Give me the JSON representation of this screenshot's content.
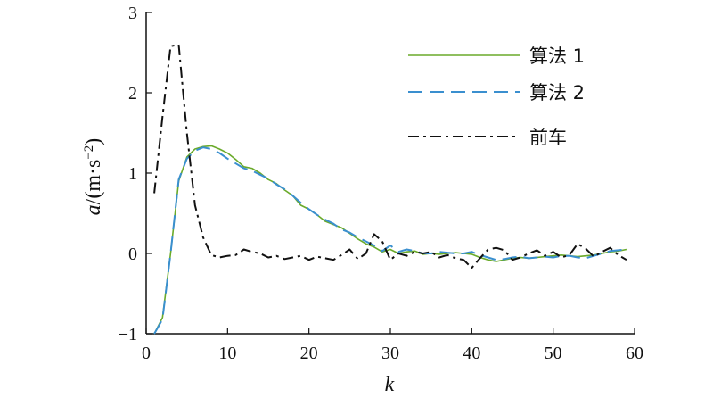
{
  "chart_data": {
    "type": "line",
    "xlabel": "k",
    "ylabel": "a/(m·s⁻²)",
    "xlim": [
      0,
      60
    ],
    "ylim": [
      -1,
      3
    ],
    "xticks": [
      0,
      10,
      20,
      30,
      40,
      50,
      60
    ],
    "yticks": [
      -1,
      0,
      1,
      2,
      3
    ],
    "xtick_labels": [
      "0",
      "10",
      "20",
      "30",
      "40",
      "50",
      "60"
    ],
    "ytick_labels": [
      "−1",
      "0",
      "1",
      "2",
      "3"
    ],
    "grid": false,
    "legend_position": "top-right",
    "series": [
      {
        "name": "算法 1",
        "color": "#6aaa2a",
        "style": "solid",
        "x": [
          1,
          2,
          3,
          4,
          5,
          6,
          7,
          8,
          9,
          10,
          11,
          12,
          13,
          14,
          15,
          16,
          17,
          18,
          19,
          20,
          21,
          22,
          23,
          24,
          25,
          26,
          27,
          28,
          29,
          30,
          31,
          32,
          33,
          34,
          35,
          36,
          37,
          38,
          39,
          40,
          41,
          42,
          43,
          44,
          45,
          46,
          47,
          48,
          49,
          50,
          51,
          52,
          53,
          54,
          55,
          56,
          57,
          58,
          59
        ],
        "y": [
          -1.0,
          -0.8,
          0.0,
          0.9,
          1.2,
          1.3,
          1.33,
          1.34,
          1.3,
          1.25,
          1.17,
          1.08,
          1.06,
          1.0,
          0.92,
          0.87,
          0.79,
          0.72,
          0.6,
          0.55,
          0.48,
          0.4,
          0.36,
          0.32,
          0.25,
          0.18,
          0.12,
          0.08,
          0.02,
          0.05,
          0.0,
          0.02,
          0.03,
          -0.01,
          0.0,
          -0.01,
          0.0,
          0.01,
          0.0,
          -0.01,
          -0.05,
          -0.08,
          -0.1,
          -0.08,
          -0.06,
          -0.05,
          -0.06,
          -0.05,
          -0.04,
          -0.03,
          -0.02,
          -0.03,
          -0.04,
          -0.03,
          -0.02,
          0.0,
          0.02,
          0.03,
          0.05
        ]
      },
      {
        "name": "算法 2",
        "color": "#3a8fcf",
        "style": "dashed",
        "x": [
          1,
          2,
          3,
          4,
          5,
          6,
          7,
          8,
          9,
          10,
          11,
          12,
          13,
          14,
          15,
          16,
          17,
          18,
          19,
          20,
          21,
          22,
          23,
          24,
          25,
          26,
          27,
          28,
          29,
          30,
          31,
          32,
          33,
          34,
          35,
          36,
          37,
          38,
          39,
          40,
          41,
          42,
          43,
          44,
          45,
          46,
          47,
          48,
          49,
          50,
          51,
          52,
          53,
          54,
          55,
          56,
          57,
          58,
          59
        ],
        "y": [
          -1.0,
          -0.82,
          0.0,
          0.92,
          1.18,
          1.28,
          1.32,
          1.3,
          1.25,
          1.18,
          1.12,
          1.06,
          1.03,
          0.98,
          0.93,
          0.86,
          0.8,
          0.72,
          0.63,
          0.55,
          0.48,
          0.42,
          0.37,
          0.3,
          0.26,
          0.2,
          0.15,
          0.1,
          0.03,
          0.1,
          0.02,
          0.05,
          0.03,
          0.0,
          0.0,
          0.02,
          0.01,
          0.0,
          0.0,
          0.02,
          -0.02,
          -0.05,
          -0.08,
          -0.07,
          -0.05,
          -0.04,
          -0.06,
          -0.05,
          -0.04,
          -0.05,
          -0.03,
          -0.03,
          -0.05,
          -0.06,
          -0.03,
          0.0,
          0.03,
          0.04,
          0.05
        ]
      },
      {
        "name": "前车",
        "color": "#111111",
        "style": "dashdot",
        "x": [
          1,
          2,
          3,
          4,
          5,
          6,
          7,
          8,
          9,
          10,
          11,
          12,
          13,
          14,
          15,
          16,
          17,
          18,
          19,
          20,
          21,
          22,
          23,
          24,
          25,
          26,
          27,
          28,
          29,
          30,
          31,
          32,
          33,
          34,
          35,
          36,
          37,
          38,
          39,
          40,
          41,
          42,
          43,
          44,
          45,
          46,
          47,
          48,
          49,
          50,
          51,
          52,
          53,
          54,
          55,
          56,
          57,
          58,
          59
        ],
        "y": [
          0.75,
          1.7,
          2.58,
          2.6,
          1.5,
          0.6,
          0.2,
          -0.02,
          -0.05,
          -0.03,
          -0.02,
          0.05,
          0.02,
          0.0,
          -0.05,
          -0.03,
          -0.07,
          -0.05,
          -0.03,
          -0.08,
          -0.04,
          -0.06,
          -0.08,
          -0.02,
          0.05,
          -0.07,
          0.0,
          0.24,
          0.15,
          -0.08,
          0.0,
          -0.03,
          0.02,
          0.0,
          0.02,
          -0.05,
          -0.02,
          -0.06,
          -0.08,
          -0.18,
          -0.06,
          0.05,
          0.07,
          0.04,
          -0.08,
          -0.05,
          0.0,
          0.04,
          -0.03,
          0.02,
          -0.05,
          -0.02,
          0.12,
          0.06,
          -0.04,
          0.02,
          0.07,
          -0.02,
          -0.08
        ]
      }
    ]
  }
}
